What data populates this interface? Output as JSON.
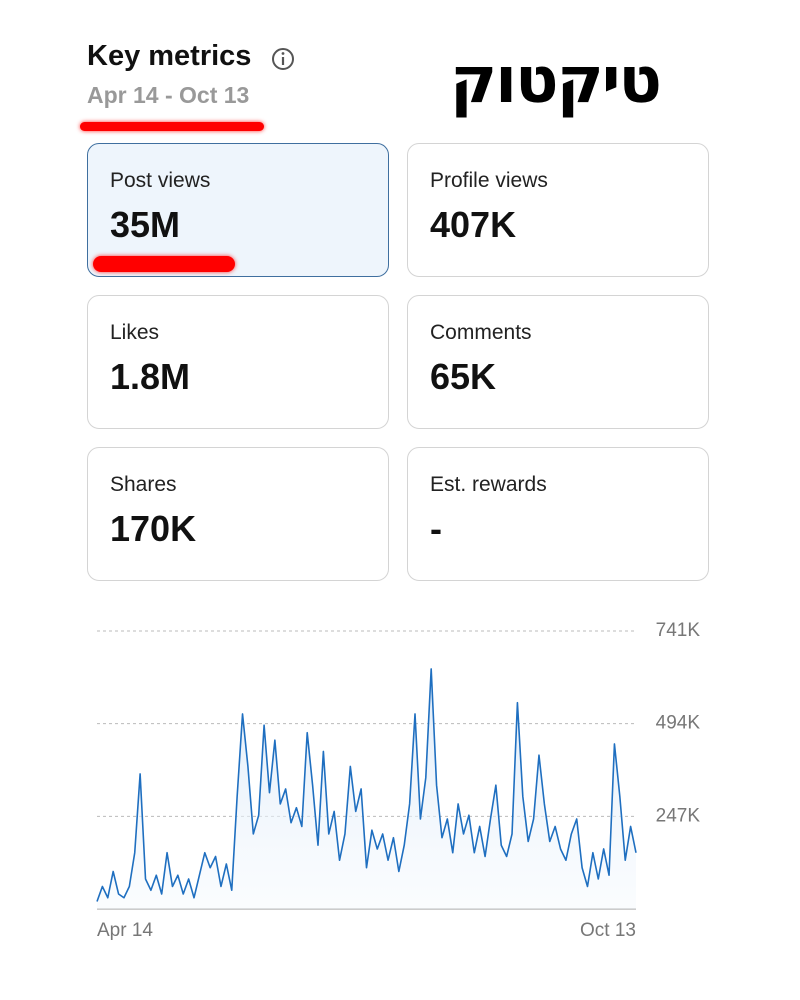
{
  "header": {
    "title": "Key metrics",
    "date_range": "Apr 14 - Oct 13",
    "logo": "טיקטוק"
  },
  "cards": [
    {
      "label": "Post views",
      "value": "35M"
    },
    {
      "label": "Profile views",
      "value": "407K"
    },
    {
      "label": "Likes",
      "value": "1.8M"
    },
    {
      "label": "Comments",
      "value": "65K"
    },
    {
      "label": "Shares",
      "value": "170K"
    },
    {
      "label": "Est. rewards",
      "value": "-"
    }
  ],
  "chart_data": {
    "type": "line",
    "categories": [
      "Apr 14",
      null,
      null,
      null,
      null,
      null,
      null,
      null,
      null,
      null,
      null,
      null,
      null,
      null,
      null,
      null,
      null,
      null,
      null,
      null,
      null,
      null,
      null,
      null,
      null,
      null,
      null,
      null,
      null,
      null,
      null,
      null,
      null,
      null,
      null,
      null,
      null,
      null,
      null,
      null,
      null,
      null,
      null,
      null,
      null,
      null,
      null,
      null,
      null,
      null,
      null,
      null,
      null,
      null,
      null,
      null,
      null,
      null,
      null,
      null,
      null,
      null,
      null,
      null,
      null,
      null,
      null,
      null,
      null,
      null,
      null,
      null,
      null,
      null,
      null,
      null,
      null,
      null,
      null,
      null,
      null,
      null,
      null,
      null,
      null,
      null,
      null,
      null,
      null,
      null,
      null,
      null,
      null,
      null,
      null,
      null,
      null,
      null,
      null,
      null,
      "Oct 13"
    ],
    "series": [
      {
        "color": "#1f6fc0",
        "values": [
          20,
          60,
          30,
          100,
          40,
          30,
          60,
          150,
          360,
          80,
          50,
          90,
          40,
          150,
          60,
          90,
          40,
          80,
          30,
          90,
          150,
          110,
          140,
          60,
          120,
          50,
          300,
          520,
          380,
          200,
          250,
          490,
          310,
          450,
          280,
          320,
          230,
          270,
          220,
          470,
          330,
          170,
          420,
          200,
          260,
          130,
          200,
          380,
          260,
          320,
          110,
          210,
          160,
          200,
          130,
          190,
          100,
          170,
          280,
          520,
          240,
          350,
          640,
          330,
          190,
          240,
          150,
          280,
          200,
          250,
          150,
          220,
          140,
          240,
          330,
          170,
          140,
          200,
          550,
          300,
          180,
          240,
          410,
          280,
          180,
          220,
          160,
          130,
          200,
          240,
          110,
          60,
          150,
          80,
          160,
          90,
          440,
          300,
          130,
          220,
          150
        ]
      }
    ],
    "ylim": [
      0,
      741
    ],
    "yticks": [
      {
        "value": 247,
        "label": "247K"
      },
      {
        "value": 494,
        "label": "494K"
      },
      {
        "value": 741,
        "label": "741K"
      }
    ],
    "grid": true
  }
}
